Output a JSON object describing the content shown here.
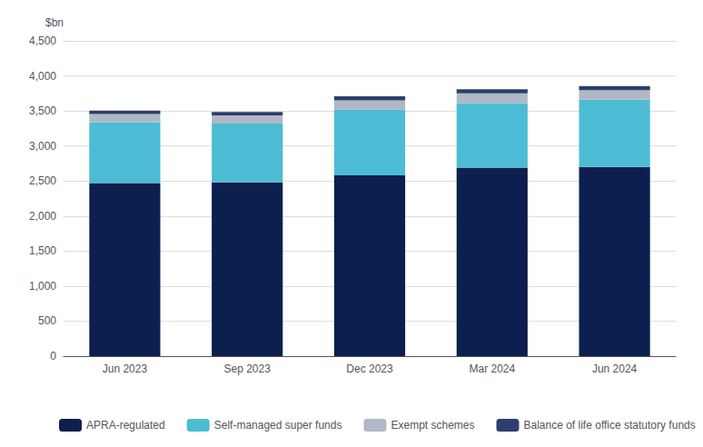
{
  "chart_data": {
    "type": "bar",
    "stacked": true,
    "ylabel": "$bn",
    "categories": [
      "Jun 2023",
      "Sep 2023",
      "Dec 2023",
      "Mar 2024",
      "Jun 2024"
    ],
    "series": [
      {
        "name": "APRA-regulated",
        "color": "#0d1f4e",
        "values": [
          2470,
          2480,
          2580,
          2690,
          2700
        ]
      },
      {
        "name": "Self-managed super funds",
        "color": "#4cbcd4",
        "values": [
          870,
          840,
          940,
          920,
          960
        ]
      },
      {
        "name": "Exempt schemes",
        "color": "#b0b8c8",
        "values": [
          115,
          115,
          130,
          140,
          135
        ]
      },
      {
        "name": "Balance of life office statutory funds",
        "color": "#2c3e6b",
        "values": [
          50,
          50,
          60,
          60,
          60
        ]
      }
    ],
    "ylim": [
      0,
      4500
    ],
    "yticks": [
      0,
      500,
      {
        "value": 1000,
        "label": "1,000"
      },
      {
        "value": 1500,
        "label": "1,500"
      },
      {
        "value": 2000,
        "label": "2,000"
      },
      {
        "value": 2500,
        "label": "2,500"
      },
      {
        "value": 3000,
        "label": "3,000"
      },
      {
        "value": 3500,
        "label": "3,500"
      },
      {
        "value": 4000,
        "label": "4,000"
      },
      {
        "value": 4500,
        "label": "4,500"
      }
    ],
    "grid": true,
    "legend": "bottom"
  }
}
